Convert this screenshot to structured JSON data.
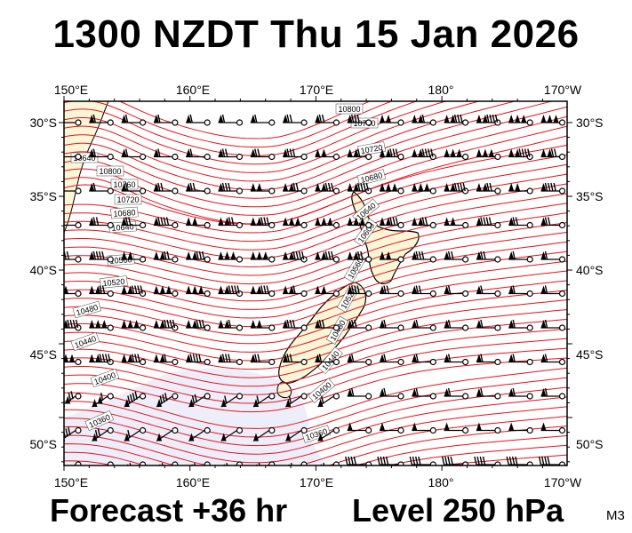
{
  "title": "1300 NZDT Thu 15 Jan 2026",
  "footer": {
    "forecast": "Forecast +36 hr",
    "level": "Level 250 hPa",
    "code": "M3"
  },
  "map": {
    "longitude_labels": [
      "150°E",
      "160°E",
      "170°E",
      "180°",
      "170°W"
    ],
    "latitude_labels": [
      "30°S",
      "35°S",
      "40°S",
      "45°S",
      "50°S"
    ],
    "contour_units": "gpm",
    "contour_labels_west": [
      "10640",
      "10800",
      "10760",
      "10720",
      "10680",
      "10640",
      "10560",
      "10520",
      "10480",
      "10440",
      "10400",
      "10360"
    ],
    "contour_labels_center": [
      "10800",
      "10760",
      "10720",
      "10680",
      "10640",
      "10600",
      "10560",
      "10520",
      "10480",
      "10440",
      "10400",
      "10360"
    ],
    "colors": {
      "contour": "#e8121a",
      "land": "#fbf6d8",
      "low_shading": "#eeeefb",
      "coast": "#000000",
      "barb": "#000000"
    },
    "wind_barbs": "grid of wind barbs, strongest in jet across New Zealand"
  }
}
